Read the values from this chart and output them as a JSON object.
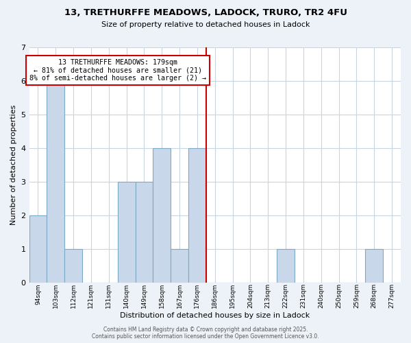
{
  "title": "13, TRETHURFFE MEADOWS, LADOCK, TRURO, TR2 4FU",
  "subtitle": "Size of property relative to detached houses in Ladock",
  "xlabel": "Distribution of detached houses by size in Ladock",
  "ylabel": "Number of detached properties",
  "bin_labels": [
    "94sqm",
    "103sqm",
    "112sqm",
    "121sqm",
    "131sqm",
    "140sqm",
    "149sqm",
    "158sqm",
    "167sqm",
    "176sqm",
    "186sqm",
    "195sqm",
    "204sqm",
    "213sqm",
    "222sqm",
    "231sqm",
    "240sqm",
    "250sqm",
    "259sqm",
    "268sqm",
    "277sqm"
  ],
  "bar_heights": [
    2,
    6,
    1,
    0,
    0,
    3,
    3,
    4,
    1,
    4,
    0,
    0,
    0,
    0,
    1,
    0,
    0,
    0,
    0,
    1,
    0
  ],
  "bar_color": "#c8d8ea",
  "bar_edge_color": "#7aaac8",
  "vline_color": "#cc0000",
  "vline_index": 9.5,
  "annotation_text": "13 TRETHURFFE MEADOWS: 179sqm\n← 81% of detached houses are smaller (21)\n8% of semi-detached houses are larger (2) →",
  "annotation_box_color": "#ffffff",
  "annotation_box_edgecolor": "#cc0000",
  "ylim": [
    0,
    7
  ],
  "yticks": [
    0,
    1,
    2,
    3,
    4,
    5,
    6,
    7
  ],
  "footer_text": "Contains HM Land Registry data © Crown copyright and database right 2025.\nContains public sector information licensed under the Open Government Licence v3.0.",
  "bg_color": "#edf2f8",
  "plot_bg_color": "#ffffff",
  "grid_color": "#c8d4e0"
}
